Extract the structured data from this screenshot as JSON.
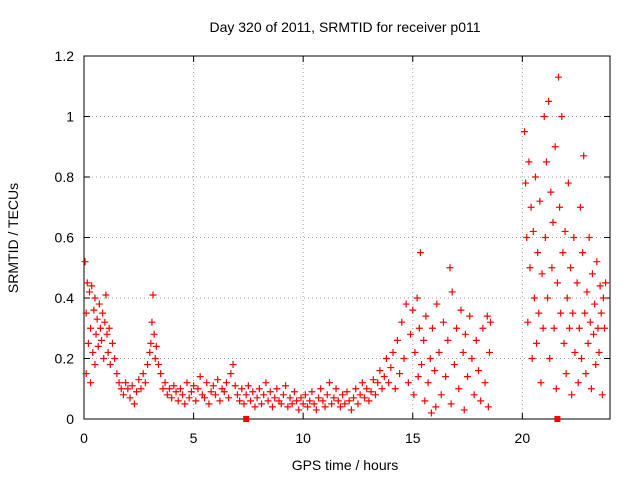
{
  "chart_data": {
    "type": "scatter",
    "title": "Day 320 of 2011, SRMTID for receiver p011",
    "xlabel": "GPS time / hours",
    "ylabel": "SRMTID / TECUs",
    "xlim": [
      0,
      24
    ],
    "ylim": [
      0,
      1.2
    ],
    "xticks": [
      0,
      5,
      10,
      15,
      20
    ],
    "xtick_labels": [
      "0",
      "5",
      "10",
      "15",
      "20"
    ],
    "yticks": [
      0,
      0.2,
      0.4,
      0.6,
      0.8,
      1.0,
      1.2
    ],
    "ytick_labels": [
      "0",
      "0.2",
      "0.4",
      "0.6",
      "0.8",
      "1",
      "1.2"
    ],
    "grid": true,
    "marker": "+",
    "marker_color": "#ff0000",
    "series": [
      {
        "name": "p011",
        "points": [
          [
            0.05,
            0.52
          ],
          [
            0.1,
            0.35
          ],
          [
            0.1,
            0.15
          ],
          [
            0.15,
            0.45
          ],
          [
            0.2,
            0.25
          ],
          [
            0.25,
            0.42
          ],
          [
            0.3,
            0.3
          ],
          [
            0.3,
            0.12
          ],
          [
            0.35,
            0.44
          ],
          [
            0.4,
            0.22
          ],
          [
            0.45,
            0.36
          ],
          [
            0.5,
            0.4
          ],
          [
            0.5,
            0.18
          ],
          [
            0.55,
            0.28
          ],
          [
            0.6,
            0.33
          ],
          [
            0.65,
            0.24
          ],
          [
            0.7,
            0.38
          ],
          [
            0.75,
            0.3
          ],
          [
            0.8,
            0.26
          ],
          [
            0.85,
            0.35
          ],
          [
            0.9,
            0.2
          ],
          [
            0.95,
            0.32
          ],
          [
            1.0,
            0.41
          ],
          [
            1.05,
            0.28
          ],
          [
            1.1,
            0.22
          ],
          [
            1.15,
            0.3
          ],
          [
            1.2,
            0.18
          ],
          [
            1.3,
            0.25
          ],
          [
            1.4,
            0.2
          ],
          [
            1.5,
            0.15
          ],
          [
            1.6,
            0.12
          ],
          [
            1.7,
            0.1
          ],
          [
            1.8,
            0.08
          ],
          [
            1.9,
            0.12
          ],
          [
            2.0,
            0.1
          ],
          [
            2.1,
            0.07
          ],
          [
            2.2,
            0.11
          ],
          [
            2.3,
            0.05
          ],
          [
            2.4,
            0.09
          ],
          [
            2.5,
            0.13
          ],
          [
            2.6,
            0.1
          ],
          [
            2.7,
            0.15
          ],
          [
            2.8,
            0.12
          ],
          [
            2.9,
            0.18
          ],
          [
            3.0,
            0.22
          ],
          [
            3.05,
            0.25
          ],
          [
            3.1,
            0.32
          ],
          [
            3.15,
            0.41
          ],
          [
            3.2,
            0.28
          ],
          [
            3.25,
            0.2
          ],
          [
            3.3,
            0.24
          ],
          [
            3.4,
            0.18
          ],
          [
            3.5,
            0.15
          ],
          [
            3.6,
            0.1
          ],
          [
            3.7,
            0.12
          ],
          [
            3.8,
            0.08
          ],
          [
            3.9,
            0.1
          ],
          [
            4.0,
            0.07
          ],
          [
            4.1,
            0.11
          ],
          [
            4.2,
            0.09
          ],
          [
            4.3,
            0.06
          ],
          [
            4.4,
            0.1
          ],
          [
            4.5,
            0.08
          ],
          [
            4.6,
            0.05
          ],
          [
            4.7,
            0.12
          ],
          [
            4.8,
            0.07
          ],
          [
            4.9,
            0.09
          ],
          [
            5.0,
            0.11
          ],
          [
            5.1,
            0.06
          ],
          [
            5.2,
            0.1
          ],
          [
            5.3,
            0.14
          ],
          [
            5.4,
            0.08
          ],
          [
            5.5,
            0.07
          ],
          [
            5.6,
            0.12
          ],
          [
            5.7,
            0.05
          ],
          [
            5.8,
            0.09
          ],
          [
            5.9,
            0.11
          ],
          [
            6.0,
            0.08
          ],
          [
            6.1,
            0.13
          ],
          [
            6.2,
            0.06
          ],
          [
            6.3,
            0.1
          ],
          [
            6.4,
            0.09
          ],
          [
            6.5,
            0.12
          ],
          [
            6.6,
            0.07
          ],
          [
            6.7,
            0.15
          ],
          [
            6.8,
            0.18
          ],
          [
            6.9,
            0.11
          ],
          [
            7.0,
            0.08
          ],
          [
            7.1,
            0.06
          ],
          [
            7.2,
            0.1
          ],
          [
            7.3,
            0.05
          ],
          [
            7.4,
            0.08
          ],
          [
            7.5,
            0.11
          ],
          [
            7.6,
            0.06
          ],
          [
            7.7,
            0.09
          ],
          [
            7.8,
            0.04
          ],
          [
            7.9,
            0.07
          ],
          [
            8.0,
            0.1
          ],
          [
            8.1,
            0.05
          ],
          [
            8.2,
            0.08
          ],
          [
            8.3,
            0.12
          ],
          [
            8.4,
            0.06
          ],
          [
            8.5,
            0.09
          ],
          [
            8.6,
            0.04
          ],
          [
            8.7,
            0.07
          ],
          [
            8.8,
            0.1
          ],
          [
            8.9,
            0.06
          ],
          [
            9.0,
            0.05
          ],
          [
            9.1,
            0.08
          ],
          [
            9.2,
            0.11
          ],
          [
            9.3,
            0.04
          ],
          [
            9.4,
            0.07
          ],
          [
            9.5,
            0.05
          ],
          [
            9.6,
            0.09
          ],
          [
            9.7,
            0.06
          ],
          [
            9.8,
            0.03
          ],
          [
            9.9,
            0.07
          ],
          [
            10.0,
            0.05
          ],
          [
            10.1,
            0.08
          ],
          [
            10.2,
            0.04
          ],
          [
            10.3,
            0.06
          ],
          [
            10.4,
            0.09
          ],
          [
            10.5,
            0.05
          ],
          [
            10.6,
            0.03
          ],
          [
            10.7,
            0.07
          ],
          [
            10.8,
            0.1
          ],
          [
            10.9,
            0.06
          ],
          [
            11.0,
            0.04
          ],
          [
            11.1,
            0.08
          ],
          [
            11.2,
            0.12
          ],
          [
            11.3,
            0.05
          ],
          [
            11.4,
            0.07
          ],
          [
            11.5,
            0.1
          ],
          [
            11.6,
            0.06
          ],
          [
            11.7,
            0.04
          ],
          [
            11.8,
            0.08
          ],
          [
            11.9,
            0.05
          ],
          [
            12.0,
            0.09
          ],
          [
            12.1,
            0.06
          ],
          [
            12.2,
            0.03
          ],
          [
            12.3,
            0.07
          ],
          [
            12.4,
            0.1
          ],
          [
            12.5,
            0.05
          ],
          [
            12.6,
            0.08
          ],
          [
            12.7,
            0.12
          ],
          [
            12.8,
            0.07
          ],
          [
            12.9,
            0.1
          ],
          [
            13.0,
            0.06
          ],
          [
            13.1,
            0.09
          ],
          [
            13.2,
            0.13
          ],
          [
            13.3,
            0.08
          ],
          [
            13.4,
            0.12
          ],
          [
            13.5,
            0.16
          ],
          [
            13.6,
            0.1
          ],
          [
            13.7,
            0.14
          ],
          [
            13.8,
            0.2
          ],
          [
            13.9,
            0.12
          ],
          [
            14.0,
            0.17
          ],
          [
            14.1,
            0.22
          ],
          [
            14.2,
            0.1
          ],
          [
            14.3,
            0.26
          ],
          [
            14.4,
            0.15
          ],
          [
            14.5,
            0.32
          ],
          [
            14.6,
            0.2
          ],
          [
            14.7,
            0.38
          ],
          [
            14.8,
            0.12
          ],
          [
            14.9,
            0.28
          ],
          [
            15.0,
            0.36
          ],
          [
            15.05,
            0.08
          ],
          [
            15.1,
            0.22
          ],
          [
            15.2,
            0.4
          ],
          [
            15.25,
            0.14
          ],
          [
            15.3,
            0.3
          ],
          [
            15.35,
            0.55
          ],
          [
            15.4,
            0.18
          ],
          [
            15.5,
            0.26
          ],
          [
            15.55,
            0.06
          ],
          [
            15.6,
            0.34
          ],
          [
            15.7,
            0.12
          ],
          [
            15.8,
            0.2
          ],
          [
            15.85,
            0.02
          ],
          [
            15.9,
            0.3
          ],
          [
            16.0,
            0.16
          ],
          [
            16.05,
            0.04
          ],
          [
            16.1,
            0.38
          ],
          [
            16.2,
            0.22
          ],
          [
            16.3,
            0.08
          ],
          [
            16.4,
            0.32
          ],
          [
            16.5,
            0.14
          ],
          [
            16.6,
            0.26
          ],
          [
            16.7,
            0.5
          ],
          [
            16.75,
            0.05
          ],
          [
            16.8,
            0.42
          ],
          [
            16.9,
            0.18
          ],
          [
            17.0,
            0.3
          ],
          [
            17.1,
            0.1
          ],
          [
            17.2,
            0.36
          ],
          [
            17.3,
            0.22
          ],
          [
            17.35,
            0.03
          ],
          [
            17.4,
            0.28
          ],
          [
            17.5,
            0.14
          ],
          [
            17.6,
            0.34
          ],
          [
            17.7,
            0.2
          ],
          [
            17.8,
            0.08
          ],
          [
            17.9,
            0.26
          ],
          [
            18.0,
            0.16
          ],
          [
            18.1,
            0.06
          ],
          [
            18.2,
            0.3
          ],
          [
            18.3,
            0.12
          ],
          [
            18.4,
            0.34
          ],
          [
            18.45,
            0.04
          ],
          [
            18.5,
            0.22
          ],
          [
            18.55,
            0.32
          ],
          [
            20.1,
            0.95
          ],
          [
            20.15,
            0.78
          ],
          [
            20.2,
            0.6
          ],
          [
            20.25,
            0.32
          ],
          [
            20.3,
            0.85
          ],
          [
            20.35,
            0.5
          ],
          [
            20.4,
            0.7
          ],
          [
            20.45,
            0.2
          ],
          [
            20.5,
            0.62
          ],
          [
            20.55,
            0.4
          ],
          [
            20.6,
            0.8
          ],
          [
            20.65,
            0.25
          ],
          [
            20.7,
            0.55
          ],
          [
            20.75,
            0.35
          ],
          [
            20.8,
            0.72
          ],
          [
            20.85,
            0.12
          ],
          [
            20.9,
            0.48
          ],
          [
            20.95,
            0.3
          ],
          [
            21.0,
            1.0
          ],
          [
            21.05,
            0.6
          ],
          [
            21.1,
            0.85
          ],
          [
            21.15,
            0.4
          ],
          [
            21.2,
            1.05
          ],
          [
            21.25,
            0.2
          ],
          [
            21.3,
            0.75
          ],
          [
            21.35,
            0.5
          ],
          [
            21.4,
            0.65
          ],
          [
            21.45,
            0.3
          ],
          [
            21.5,
            0.9
          ],
          [
            21.55,
            0.1
          ],
          [
            21.6,
            0.45
          ],
          [
            21.65,
            1.13
          ],
          [
            21.7,
            0.7
          ],
          [
            21.75,
            0.35
          ],
          [
            21.8,
            1.0
          ],
          [
            21.85,
            0.55
          ],
          [
            21.9,
            0.25
          ],
          [
            21.95,
            0.62
          ],
          [
            22.0,
            0.15
          ],
          [
            22.05,
            0.4
          ],
          [
            22.1,
            0.78
          ],
          [
            22.15,
            0.3
          ],
          [
            22.2,
            0.5
          ],
          [
            22.25,
            0.08
          ],
          [
            22.3,
            0.35
          ],
          [
            22.35,
            0.6
          ],
          [
            22.4,
            0.22
          ],
          [
            22.5,
            0.45
          ],
          [
            22.55,
            0.12
          ],
          [
            22.6,
            0.3
          ],
          [
            22.65,
            0.7
          ],
          [
            22.7,
            0.2
          ],
          [
            22.75,
            0.55
          ],
          [
            22.8,
            0.87
          ],
          [
            22.85,
            0.35
          ],
          [
            22.9,
            0.15
          ],
          [
            22.95,
            0.42
          ],
          [
            23.0,
            0.25
          ],
          [
            23.05,
            0.6
          ],
          [
            23.1,
            0.32
          ],
          [
            23.15,
            0.1
          ],
          [
            23.2,
            0.48
          ],
          [
            23.25,
            0.28
          ],
          [
            23.3,
            0.38
          ],
          [
            23.35,
            0.18
          ],
          [
            23.4,
            0.52
          ],
          [
            23.45,
            0.3
          ],
          [
            23.5,
            0.22
          ],
          [
            23.55,
            0.44
          ],
          [
            23.6,
            0.35
          ],
          [
            23.65,
            0.08
          ],
          [
            23.7,
            0.4
          ],
          [
            23.75,
            0.3
          ],
          [
            23.8,
            0.45
          ]
        ]
      }
    ],
    "square_points": [
      [
        7.4,
        0.0
      ],
      [
        21.6,
        0.0
      ]
    ]
  }
}
